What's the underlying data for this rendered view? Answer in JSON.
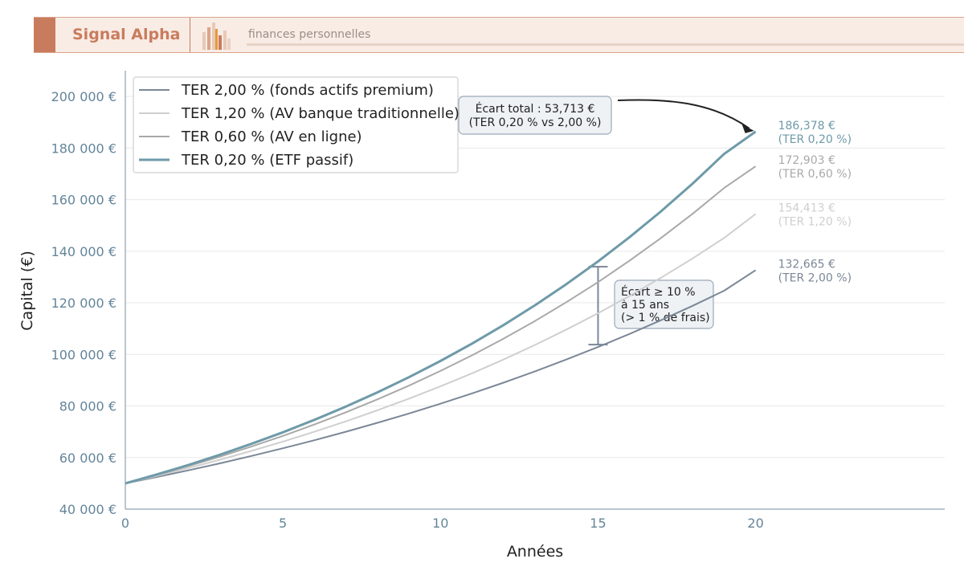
{
  "banner": {
    "brand": "Signal Alpha",
    "tagline": "finances personnelles",
    "accent": "#c97c5d",
    "background": "#f8ece5"
  },
  "chart_data": {
    "type": "line",
    "xlabel": "Années",
    "ylabel": "Capital (€)",
    "xlim": [
      0,
      26
    ],
    "ylim": [
      40000,
      210000
    ],
    "x_ticks": [
      0,
      5,
      10,
      15,
      20
    ],
    "y_ticks": [
      {
        "value": 40000,
        "label": "40 000 €"
      },
      {
        "value": 60000,
        "label": "60 000 €"
      },
      {
        "value": 80000,
        "label": "80 000 €"
      },
      {
        "value": 100000,
        "label": "100 000 €"
      },
      {
        "value": 120000,
        "label": "120 000 €"
      },
      {
        "value": 140000,
        "label": "140 000 €"
      },
      {
        "value": 160000,
        "label": "160 000 €"
      },
      {
        "value": 180000,
        "label": "180 000 €"
      },
      {
        "value": 200000,
        "label": "200 000 €"
      }
    ],
    "grid": "horizontal",
    "legend_position": "top-left",
    "x": [
      0,
      1,
      2,
      3,
      4,
      5,
      6,
      7,
      8,
      9,
      10,
      11,
      12,
      13,
      14,
      15,
      16,
      17,
      18,
      19,
      20
    ],
    "series": [
      {
        "name": "TER 2,00 % (fonds actifs premium)",
        "color": "#7b8797",
        "width": 2,
        "values": [
          50000,
          52464,
          55049,
          57762,
          60608,
          63595,
          66728,
          70016,
          73466,
          77086,
          80885,
          84871,
          89053,
          93441,
          98045,
          102877,
          107946,
          113265,
          118847,
          124703,
          132665
        ],
        "end_value": "132,665 €",
        "end_label": "(TER 2,00 %)"
      },
      {
        "name": "TER 1,20 % (AV banque traditionnelle)",
        "color": "#cfcfcf",
        "width": 2,
        "values": [
          50000,
          52884,
          55935,
          59162,
          62575,
          66185,
          70003,
          74041,
          78313,
          82831,
          87609,
          92664,
          98010,
          103664,
          109644,
          115970,
          122660,
          129736,
          137220,
          145137,
          154413
        ],
        "end_value": "154,413 €",
        "end_label": "(TER 1,20 %)"
      },
      {
        "name": "TER 0,60 % (AV en ligne)",
        "color": "#a9a9a9",
        "width": 2,
        "values": [
          50000,
          53234,
          56678,
          60345,
          64249,
          68405,
          72831,
          77542,
          82559,
          87899,
          93586,
          99640,
          106086,
          112949,
          120256,
          128035,
          136318,
          145137,
          154527,
          164524,
          172903
        ],
        "end_value": "172,903 €",
        "end_label": "(TER 0,60 %)"
      },
      {
        "name": "TER 0,20 % (ETF passif)",
        "color": "#6e9aa8",
        "width": 3,
        "values": [
          50000,
          53451,
          57140,
          61083,
          65299,
          69806,
          74624,
          79774,
          85280,
          91166,
          97458,
          104184,
          111375,
          119062,
          127279,
          136064,
          145455,
          155494,
          166226,
          177698,
          186378
        ],
        "end_value": "186,378 €",
        "end_label": "(TER 0,20 %)"
      }
    ],
    "annotations": [
      {
        "lines": [
          "Écart total : 53,713 €",
          "(TER 0,20 % vs 2,00 %)"
        ],
        "arrow_to": {
          "x": 20,
          "y": 186378
        }
      },
      {
        "lines": [
          "Écart ≥ 10 %",
          "à 15 ans",
          "(> 1 % de frais)"
        ],
        "bracket": {
          "x": 15,
          "y_low": 103800,
          "y_high": 134000
        }
      }
    ]
  }
}
